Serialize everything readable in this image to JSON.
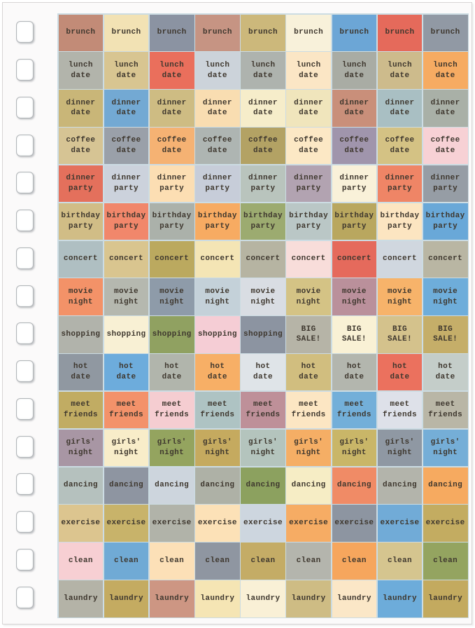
{
  "page": {
    "background": "#ffffff",
    "paper_color": "#fbfafa",
    "border_color": "#d7d5d5",
    "grid_line_color": "#ccdce3",
    "text_color": "#3e372e"
  },
  "binding": {
    "hole_count": 16,
    "hole_color": "#ffffff",
    "hole_border_color": "#b2b6b9"
  },
  "sheet": {
    "columns": 9,
    "rows": [
      {
        "cells": [
          {
            "label": "brunch",
            "color": "#c28b77"
          },
          {
            "label": "brunch",
            "color": "#f2e2b4"
          },
          {
            "label": "brunch",
            "color": "#8b93a2"
          },
          {
            "label": "brunch",
            "color": "#c69483"
          },
          {
            "label": "brunch",
            "color": "#ccb87b"
          },
          {
            "label": "brunch",
            "color": "#f8f1da"
          },
          {
            "label": "brunch",
            "color": "#6ca6d6"
          },
          {
            "label": "brunch",
            "color": "#e56a5b"
          },
          {
            "label": "brunch",
            "color": "#9199a4"
          }
        ]
      },
      {
        "cells": [
          {
            "label": "lunch\ndate",
            "color": "#b2b4ab"
          },
          {
            "label": "lunch\ndate",
            "color": "#d8c591"
          },
          {
            "label": "lunch\ndate",
            "color": "#ea6f5c"
          },
          {
            "label": "lunch\ndate",
            "color": "#ccd3da"
          },
          {
            "label": "lunch\ndate",
            "color": "#aeb3ae"
          },
          {
            "label": "lunch\ndate",
            "color": "#fbe6c5"
          },
          {
            "label": "lunch\ndate",
            "color": "#a9aca4"
          },
          {
            "label": "lunch\ndate",
            "color": "#cdbb8c"
          },
          {
            "label": "lunch\ndate",
            "color": "#f6ab62"
          }
        ]
      },
      {
        "cells": [
          {
            "label": "dinner\ndate",
            "color": "#c9b678"
          },
          {
            "label": "dinner\ndate",
            "color": "#73a9d3"
          },
          {
            "label": "dinner\ndate",
            "color": "#cebc83"
          },
          {
            "label": "dinner\ndate",
            "color": "#f9ddb1"
          },
          {
            "label": "dinner\ndate",
            "color": "#f6edca"
          },
          {
            "label": "dinner\ndate",
            "color": "#f0e5bc"
          },
          {
            "label": "dinner\ndate",
            "color": "#c98f7a"
          },
          {
            "label": "dinner\ndate",
            "color": "#a9bfc3"
          },
          {
            "label": "dinner\ndate",
            "color": "#a9b0a7"
          }
        ]
      },
      {
        "cells": [
          {
            "label": "coffee\ndate",
            "color": "#d6c494"
          },
          {
            "label": "coffee\ndate",
            "color": "#9aa0a9"
          },
          {
            "label": "coffee\ndate",
            "color": "#f5b273"
          },
          {
            "label": "coffee\ndate",
            "color": "#aeb5b2"
          },
          {
            "label": "coffee\ndate",
            "color": "#b3a264"
          },
          {
            "label": "coffee\ndate",
            "color": "#fce8c5"
          },
          {
            "label": "coffee\ndate",
            "color": "#a095ac"
          },
          {
            "label": "coffee\ndate",
            "color": "#d4c284"
          },
          {
            "label": "coffee\ndate",
            "color": "#f7d1d5"
          }
        ]
      },
      {
        "cells": [
          {
            "label": "dinner\nparty",
            "color": "#e4705c"
          },
          {
            "label": "dinner\nparty",
            "color": "#ccd2dc"
          },
          {
            "label": "dinner\nparty",
            "color": "#fcdeb3"
          },
          {
            "label": "dinner\nparty",
            "color": "#c7cdd9"
          },
          {
            "label": "dinner\nparty",
            "color": "#b9c4bd"
          },
          {
            "label": "dinner\nparty",
            "color": "#b2a3b1"
          },
          {
            "label": "dinner\nparty",
            "color": "#f9f1d9"
          },
          {
            "label": "dinner\nparty",
            "color": "#ef8566"
          },
          {
            "label": "dinner\nparty",
            "color": "#969da5"
          }
        ]
      },
      {
        "cells": [
          {
            "label": "birthday\nparty",
            "color": "#d1bd86"
          },
          {
            "label": "birthday\nparty",
            "color": "#f1876b"
          },
          {
            "label": "birthday\nparty",
            "color": "#abb1aa"
          },
          {
            "label": "birthday\nparty",
            "color": "#f7ab62"
          },
          {
            "label": "birthday\nparty",
            "color": "#9cab70"
          },
          {
            "label": "birthday\nparty",
            "color": "#bac7c6"
          },
          {
            "label": "birthday\nparty",
            "color": "#b9a75f"
          },
          {
            "label": "birthday\nparty",
            "color": "#fce5c1"
          },
          {
            "label": "birthday\nparty",
            "color": "#69a8d8"
          }
        ]
      },
      {
        "cells": [
          {
            "label": "concert",
            "color": "#afbfc2"
          },
          {
            "label": "concert",
            "color": "#d9c58f"
          },
          {
            "label": "concert",
            "color": "#bba95f"
          },
          {
            "label": "concert",
            "color": "#f4e5b5"
          },
          {
            "label": "concert",
            "color": "#b6b4a2"
          },
          {
            "label": "concert",
            "color": "#f8ddda"
          },
          {
            "label": "concert",
            "color": "#e56a5c"
          },
          {
            "label": "concert",
            "color": "#d0d7df"
          },
          {
            "label": "concert",
            "color": "#b9b6a3"
          }
        ]
      },
      {
        "cells": [
          {
            "label": "movie\nnight",
            "color": "#f39268"
          },
          {
            "label": "movie\nnight",
            "color": "#b5b8af"
          },
          {
            "label": "movie\nnight",
            "color": "#8e9ba9"
          },
          {
            "label": "movie\nnight",
            "color": "#c4d1d9"
          },
          {
            "label": "movie\nnight",
            "color": "#d9dde3"
          },
          {
            "label": "movie\nnight",
            "color": "#d4c385"
          },
          {
            "label": "movie\nnight",
            "color": "#ba909b"
          },
          {
            "label": "movie\nnight",
            "color": "#f7b36a"
          },
          {
            "label": "movie\nnight",
            "color": "#6eadda"
          }
        ]
      },
      {
        "cells": [
          {
            "label": "shopping",
            "color": "#b1b3ab"
          },
          {
            "label": "shopping",
            "color": "#f8f0d4"
          },
          {
            "label": "shopping",
            "color": "#90a161"
          },
          {
            "label": "shopping",
            "color": "#f5cdd5"
          },
          {
            "label": "shopping",
            "color": "#8c94a1"
          },
          {
            "label": "BIG\nSALE!",
            "color": "#b6b4a7"
          },
          {
            "label": "BIG\nSALE!",
            "color": "#f9f1d5"
          },
          {
            "label": "BIG\nSALE!",
            "color": "#d4c28c"
          },
          {
            "label": "BIG\nSALE!",
            "color": "#c5ae69"
          }
        ]
      },
      {
        "cells": [
          {
            "label": "hot\ndate",
            "color": "#9098a1"
          },
          {
            "label": "hot\ndate",
            "color": "#6dacdc"
          },
          {
            "label": "hot\ndate",
            "color": "#b1b5ac"
          },
          {
            "label": "hot\ndate",
            "color": "#f7af66"
          },
          {
            "label": "hot\ndate",
            "color": "#dfe4e8"
          },
          {
            "label": "hot\ndate",
            "color": "#d1be7f"
          },
          {
            "label": "hot\ndate",
            "color": "#b3b6ae"
          },
          {
            "label": "hot\ndate",
            "color": "#eb715e"
          },
          {
            "label": "hot\ndate",
            "color": "#c4cdc9"
          }
        ]
      },
      {
        "cells": [
          {
            "label": "meet\nfriends",
            "color": "#c1ac63"
          },
          {
            "label": "meet\nfriends",
            "color": "#f3926a"
          },
          {
            "label": "meet\nfriends",
            "color": "#f5cdd1"
          },
          {
            "label": "meet\nfriends",
            "color": "#aec3c3"
          },
          {
            "label": "meet\nfriends",
            "color": "#be9099"
          },
          {
            "label": "meet\nfriends",
            "color": "#fce6c3"
          },
          {
            "label": "meet\nfriends",
            "color": "#73afd9"
          },
          {
            "label": "meet\nfriends",
            "color": "#dee1e9"
          },
          {
            "label": "meet\nfriends",
            "color": "#b9b6a6"
          }
        ]
      },
      {
        "cells": [
          {
            "label": "girls'\nnight",
            "color": "#a896a4"
          },
          {
            "label": "girls'\nnight",
            "color": "#f8edc9"
          },
          {
            "label": "girls'\nnight",
            "color": "#94a45f"
          },
          {
            "label": "girls'\nnight",
            "color": "#c5aa5f"
          },
          {
            "label": "girls'\nnight",
            "color": "#b4c4bd"
          },
          {
            "label": "girls'\nnight",
            "color": "#f5ae65"
          },
          {
            "label": "girls'\nnight",
            "color": "#c9b668"
          },
          {
            "label": "girls'\nnight",
            "color": "#8f98a3"
          },
          {
            "label": "girls'\nnight",
            "color": "#75aed7"
          }
        ]
      },
      {
        "cells": [
          {
            "label": "dancing",
            "color": "#b5c1be"
          },
          {
            "label": "dancing",
            "color": "#8e95a1"
          },
          {
            "label": "dancing",
            "color": "#cdd5dd"
          },
          {
            "label": "dancing",
            "color": "#aeb1a6"
          },
          {
            "label": "dancing",
            "color": "#8ca15f"
          },
          {
            "label": "dancing",
            "color": "#f6edc5"
          },
          {
            "label": "dancing",
            "color": "#f08b66"
          },
          {
            "label": "dancing",
            "color": "#b3b4ab"
          },
          {
            "label": "dancing",
            "color": "#f6aa60"
          }
        ]
      },
      {
        "cells": [
          {
            "label": "exercise",
            "color": "#dcc58f"
          },
          {
            "label": "exercise",
            "color": "#c8b36a"
          },
          {
            "label": "exercise",
            "color": "#b1b3a9"
          },
          {
            "label": "exercise",
            "color": "#fce1b7"
          },
          {
            "label": "exercise",
            "color": "#cdd6df"
          },
          {
            "label": "exercise",
            "color": "#f6ac64"
          },
          {
            "label": "exercise",
            "color": "#8d95a1"
          },
          {
            "label": "exercise",
            "color": "#71abd7"
          },
          {
            "label": "exercise",
            "color": "#c3ac61"
          }
        ]
      },
      {
        "cells": [
          {
            "label": "clean",
            "color": "#f7cfd3"
          },
          {
            "label": "clean",
            "color": "#70aad5"
          },
          {
            "label": "clean",
            "color": "#fce0b7"
          },
          {
            "label": "clean",
            "color": "#8f96a1"
          },
          {
            "label": "clean",
            "color": "#c4ac66"
          },
          {
            "label": "clean",
            "color": "#b4b5ad"
          },
          {
            "label": "clean",
            "color": "#f6a65d"
          },
          {
            "label": "clean",
            "color": "#d5c58f"
          },
          {
            "label": "clean",
            "color": "#94a460"
          }
        ]
      },
      {
        "cells": [
          {
            "label": "laundry",
            "color": "#b4b3a7"
          },
          {
            "label": "laundry",
            "color": "#c4ab61"
          },
          {
            "label": "laundry",
            "color": "#cd9683"
          },
          {
            "label": "laundry",
            "color": "#f5e5b4"
          },
          {
            "label": "laundry",
            "color": "#f9f0d6"
          },
          {
            "label": "laundry",
            "color": "#cebc84"
          },
          {
            "label": "laundry",
            "color": "#fbe7c7"
          },
          {
            "label": "laundry",
            "color": "#6dacda"
          },
          {
            "label": "laundry",
            "color": "#c3aa5f"
          }
        ]
      }
    ]
  }
}
